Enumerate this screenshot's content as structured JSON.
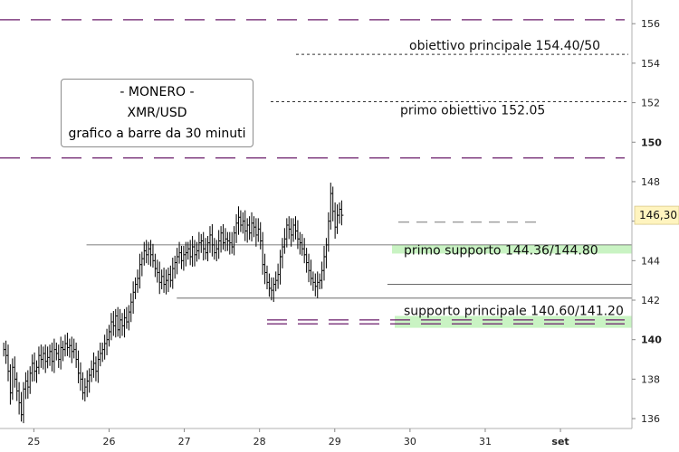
{
  "chart_data": {
    "type": "bar",
    "instrument": "XMR/USD",
    "title_lines": [
      "- MONERO -",
      "XMR/USD",
      "grafico a barre da 30 minuti"
    ],
    "x_ticks": [
      "25",
      "26",
      "27",
      "28",
      "29",
      "30",
      "31",
      "set"
    ],
    "y_ticks": [
      136,
      138,
      140,
      142,
      144,
      146,
      148,
      150,
      152,
      154,
      156
    ],
    "y_bold_ticks": [
      140,
      150
    ],
    "ylim": [
      135.5,
      157.2
    ],
    "last_price": 146.3,
    "last_price_label": "146,30",
    "colors": {
      "price_tag": "#fff4bf",
      "support_fill": "#c9f3c3",
      "purple_line": "#6a1b6a",
      "bars": "#000000"
    },
    "levels": [
      {
        "label": "obiettivo principale 154.40/50",
        "value": 154.45,
        "style": "dotted"
      },
      {
        "label": "primo obiettivo 152.05",
        "value": 152.05,
        "style": "dotted"
      },
      {
        "label": "primo supporto 144.36/144.80",
        "low": 144.36,
        "high": 144.8,
        "style": "zone"
      },
      {
        "label": "supporto principale 140.60/141.20",
        "low": 140.6,
        "high": 141.2,
        "style": "zone"
      }
    ],
    "horizontal_lines": [
      {
        "value": 156.2,
        "style": "purple-dash"
      },
      {
        "value": 149.2,
        "style": "purple-dash"
      },
      {
        "value": 144.8,
        "style": "solid-thin",
        "x_start_day": 25.7
      },
      {
        "value": 142.8,
        "style": "solid-thin",
        "x_start_day": 29.7
      },
      {
        "value": 142.1,
        "style": "solid-thin",
        "x_start_day": 26.9
      },
      {
        "value": 140.8,
        "style": "purple-dash",
        "x_start_day": 28.1
      },
      {
        "value": 141.0,
        "style": "purple-dash",
        "x_start_day": 28.1
      }
    ],
    "series": [
      {
        "day_start": 24.6,
        "bar_interval_days": 0.0208333,
        "closes": [
          139.5,
          139.2,
          138.4,
          137.3,
          138.6,
          138.0,
          137.4,
          136.8,
          136.2,
          137.5,
          137.9,
          137.6,
          138.3,
          138.8,
          138.4,
          138.6,
          139.2,
          139.0,
          139.3,
          138.9,
          139.1,
          139.4,
          138.9,
          139.5,
          139.3,
          139.0,
          139.6,
          139.5,
          139.8,
          139.6,
          139.7,
          139.4,
          139.5,
          139.0,
          138.3,
          138.0,
          137.3,
          137.6,
          137.9,
          138.2,
          138.5,
          138.8,
          138.4,
          139.0,
          139.3,
          139.5,
          139.8,
          140.0,
          140.4,
          140.9,
          140.7,
          141.2,
          140.5,
          141.0,
          140.7,
          141.1,
          140.9,
          141.4,
          141.9,
          142.4,
          142.8,
          143.1,
          143.8,
          144.1,
          144.5,
          144.3,
          144.6,
          144.3,
          144.0,
          143.6,
          143.4,
          142.9,
          143.2,
          142.8,
          143.0,
          143.3,
          143.0,
          143.6,
          143.9,
          144.2,
          144.4,
          144.0,
          144.3,
          144.4,
          144.6,
          144.2,
          144.7,
          144.3,
          144.5,
          144.9,
          145.0,
          144.6,
          144.4,
          144.9,
          145.3,
          144.8,
          144.4,
          144.6,
          145.0,
          145.4,
          144.9,
          145.1,
          145.0,
          144.9,
          144.7,
          145.4,
          145.9,
          146.2,
          145.8,
          146.0,
          145.5,
          145.8,
          145.4,
          145.9,
          145.7,
          145.3,
          145.6,
          145.0,
          143.8,
          143.4,
          142.9,
          142.6,
          142.5,
          142.8,
          143.0,
          143.3,
          144.2,
          144.7,
          145.1,
          145.8,
          145.6,
          145.3,
          145.8,
          145.5,
          145.1,
          144.9,
          144.6,
          144.3,
          143.9,
          143.5,
          143.1,
          142.9,
          142.7,
          142.9,
          143.0,
          143.5,
          144.2,
          144.8,
          146.0,
          147.4,
          146.5,
          145.7,
          146.3,
          146.6,
          146.3
        ]
      }
    ]
  }
}
